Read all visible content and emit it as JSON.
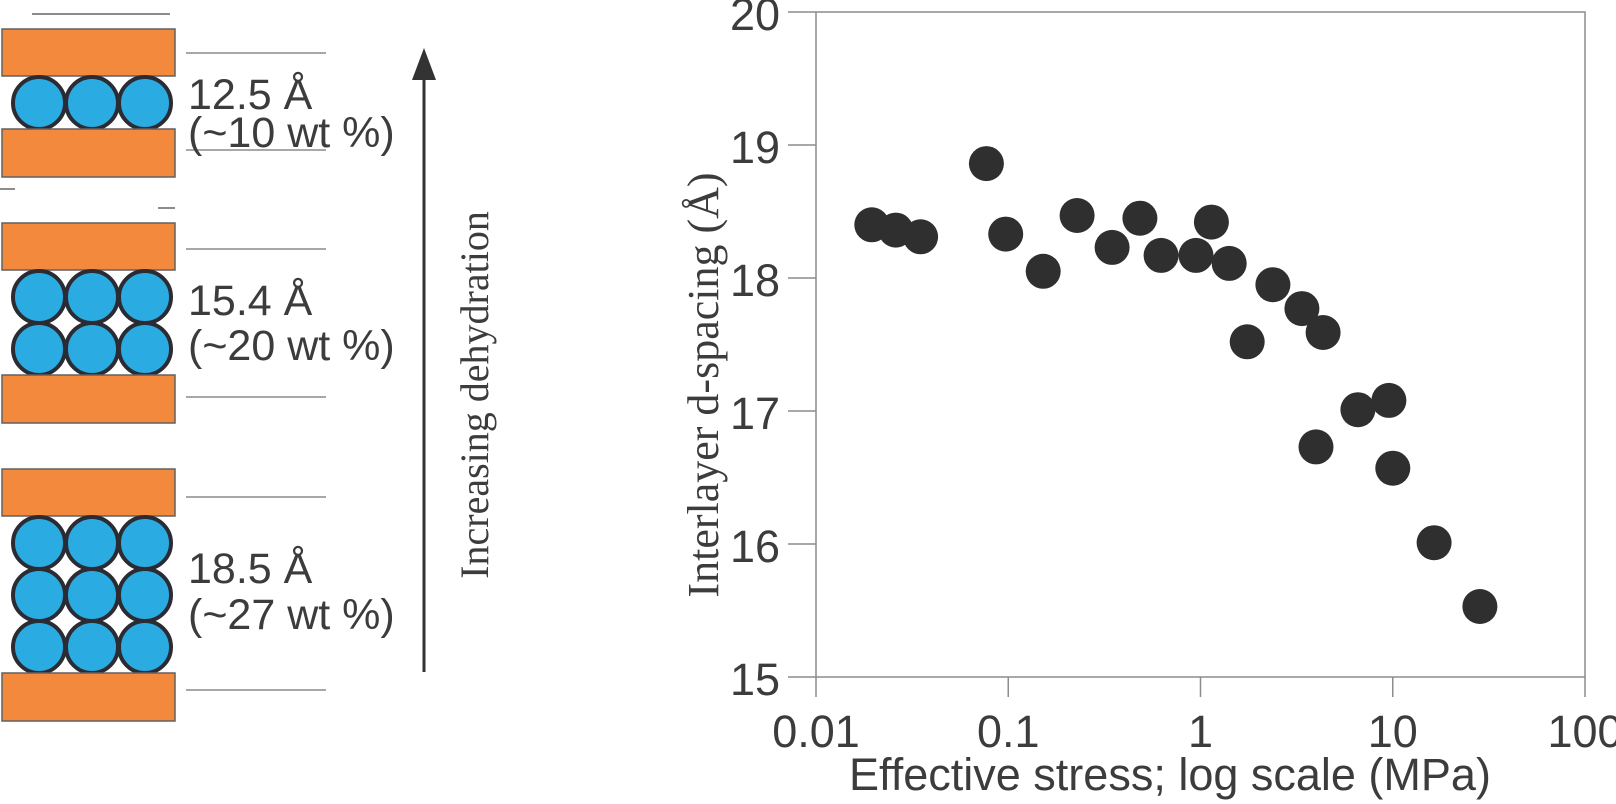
{
  "diagram": {
    "arrow_label": "Increasing dehydration",
    "states": [
      {
        "d_label": "12.5 Å",
        "wt_label": "(~10 wt %)",
        "water_rows": 1
      },
      {
        "d_label": "15.4 Å",
        "wt_label": "(~20 wt %)",
        "water_rows": 2
      },
      {
        "d_label": "18.5 Å",
        "wt_label": "(~27 wt %)",
        "water_rows": 3
      }
    ],
    "colors": {
      "clay": "#F2893C",
      "clay_outline": "#606060",
      "water": "#2AACE2",
      "water_outline": "#2B2B33",
      "line": "#8C8C8C",
      "arrow": "#333333",
      "text": "#3C3C3C"
    }
  },
  "chart_data": {
    "type": "scatter",
    "title": "",
    "xlabel": "Effective stress; log scale (MPa)",
    "ylabel": "Interlayer d-spacing (Å)",
    "x_scale": "log",
    "xlim": [
      0.01,
      100
    ],
    "ylim": [
      15,
      20
    ],
    "x_ticks": [
      0.01,
      0.1,
      1,
      10,
      100
    ],
    "x_tick_labels": [
      "0.01",
      "0.1",
      "1",
      "10",
      "100"
    ],
    "y_ticks": [
      15,
      16,
      17,
      18,
      19,
      20
    ],
    "y_tick_labels": [
      "15",
      "16",
      "17",
      "18",
      "19",
      "20"
    ],
    "grid": false,
    "legend": null,
    "marker_color": "#2F2F2F",
    "axis_color": "#8C8C8C",
    "points": [
      [
        0.0195,
        18.4
      ],
      [
        0.026,
        18.36
      ],
      [
        0.035,
        18.31
      ],
      [
        0.077,
        18.86
      ],
      [
        0.097,
        18.33
      ],
      [
        0.152,
        18.05
      ],
      [
        0.228,
        18.47
      ],
      [
        0.347,
        18.23
      ],
      [
        0.484,
        18.45
      ],
      [
        0.624,
        18.17
      ],
      [
        0.948,
        18.17
      ],
      [
        1.14,
        18.42
      ],
      [
        1.41,
        18.11
      ],
      [
        1.75,
        17.52
      ],
      [
        2.38,
        17.95
      ],
      [
        3.37,
        17.77
      ],
      [
        3.99,
        16.73
      ],
      [
        4.34,
        17.59
      ],
      [
        6.59,
        17.01
      ],
      [
        9.55,
        17.08
      ],
      [
        10.0,
        16.57
      ],
      [
        16.4,
        16.01
      ],
      [
        28.4,
        15.53
      ]
    ]
  }
}
